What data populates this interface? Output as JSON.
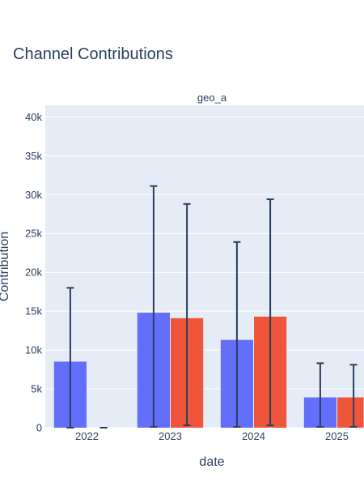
{
  "chart_data": {
    "type": "bar",
    "title": "Channel Contributions",
    "facet_label": "geo_a",
    "xlabel": "date",
    "ylabel": "Contribution",
    "categories": [
      "2022",
      "2023",
      "2024",
      "2025"
    ],
    "ylim": [
      0,
      41500
    ],
    "yticks": [
      0,
      5000,
      10000,
      15000,
      20000,
      25000,
      30000,
      35000,
      40000
    ],
    "ytick_labels": [
      "0",
      "5k",
      "10k",
      "15k",
      "20k",
      "25k",
      "30k",
      "35k",
      "40k"
    ],
    "grid": true,
    "series": [
      {
        "color": "#636efa",
        "values": [
          8500,
          14800,
          11300,
          3900
        ],
        "error_low": [
          0,
          100,
          100,
          100
        ],
        "error_high": [
          18000,
          31100,
          23900,
          8300
        ]
      },
      {
        "color": "#ef553b",
        "values": [
          0,
          14100,
          14300,
          3900
        ],
        "error_low": [
          0,
          300,
          300,
          100
        ],
        "error_high": [
          0,
          28800,
          29400,
          8100
        ]
      }
    ],
    "colors": {
      "plot_background": "#e5ecf6",
      "error_bar": "#2a3f5f",
      "text": "#2a3f5f"
    }
  }
}
